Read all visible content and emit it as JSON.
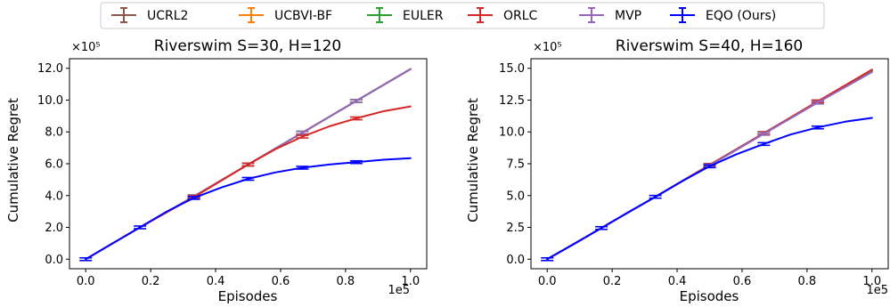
{
  "legend": {
    "placement": "top-center",
    "entries": [
      {
        "name": "UCRL2",
        "color": "#8c564b"
      },
      {
        "name": "UCBVI-BF",
        "color": "#ff7f0e"
      },
      {
        "name": "EULER",
        "color": "#2ca02c"
      },
      {
        "name": "ORLC",
        "color": "#d62728"
      },
      {
        "name": "MVP",
        "color": "#9467bd"
      },
      {
        "name": "EQO (Ours)",
        "color": "#0000ff"
      }
    ]
  },
  "chart_data": [
    {
      "type": "line",
      "title": "Riverswim S=30, H=120",
      "xlabel": "Episodes",
      "ylabel": "Cumulative Regret",
      "x_multiplier": "1e5",
      "y_multiplier": "×10⁵",
      "xlim": [
        -0.05,
        1.05
      ],
      "ylim": [
        -0.6,
        12.6
      ],
      "xticks": [
        "0.0",
        "0.2",
        "0.4",
        "0.6",
        "0.8",
        "1.0"
      ],
      "yticks": [
        "0.0",
        "2.0",
        "4.0",
        "6.0",
        "8.0",
        "10.0",
        "12.0"
      ],
      "grid": false,
      "series": [
        {
          "name": "UCRL2",
          "color": "#8c564b",
          "x": [
            0,
            0.167,
            0.333,
            0.5,
            0.667,
            0.833,
            1.0
          ],
          "y": [
            0,
            2.0,
            3.95,
            5.95,
            7.95,
            9.95,
            11.95
          ],
          "err_x": [
            0.333,
            0.5,
            0.667,
            0.833
          ]
        },
        {
          "name": "UCBVI-BF",
          "color": "#ff7f0e",
          "x": [
            0,
            0.167,
            0.333,
            0.5,
            0.667,
            0.833,
            1.0
          ],
          "y": [
            0,
            2.0,
            3.95,
            5.95,
            7.95,
            9.95,
            11.95
          ],
          "err_x": [
            0.333,
            0.5,
            0.667,
            0.833
          ]
        },
        {
          "name": "EULER",
          "color": "#2ca02c",
          "x": [
            0,
            0.167,
            0.333,
            0.5,
            0.667,
            0.833,
            1.0
          ],
          "y": [
            0,
            2.0,
            3.95,
            5.95,
            7.95,
            9.95,
            11.95
          ],
          "err_x": [
            0.333,
            0.5,
            0.667,
            0.833
          ]
        },
        {
          "name": "MVP",
          "color": "#9467bd",
          "x": [
            0,
            0.167,
            0.333,
            0.5,
            0.667,
            0.833,
            1.0
          ],
          "y": [
            0,
            2.0,
            3.95,
            5.95,
            7.95,
            9.95,
            11.95
          ],
          "err_x": [
            0.333,
            0.5,
            0.667,
            0.833
          ]
        },
        {
          "name": "ORLC",
          "color": "#d62728",
          "x": [
            0,
            0.167,
            0.333,
            0.5,
            0.583,
            0.667,
            0.75,
            0.833,
            0.917,
            1.0
          ],
          "y": [
            0,
            2.0,
            3.9,
            5.95,
            6.9,
            7.7,
            8.35,
            8.85,
            9.3,
            9.6
          ],
          "err_x": [
            0.333,
            0.5,
            0.667,
            0.833
          ]
        },
        {
          "name": "EQO (Ours)",
          "color": "#0000ff",
          "x": [
            0,
            0.083,
            0.167,
            0.25,
            0.333,
            0.417,
            0.5,
            0.583,
            0.667,
            0.75,
            0.833,
            0.917,
            1.0
          ],
          "y": [
            0,
            1.0,
            2.0,
            3.0,
            3.85,
            4.5,
            5.05,
            5.45,
            5.75,
            5.95,
            6.1,
            6.25,
            6.35
          ],
          "err_x": [
            0,
            0.167,
            0.333,
            0.5,
            0.667,
            0.833
          ]
        }
      ]
    },
    {
      "type": "line",
      "title": "Riverswim S=40, H=160",
      "xlabel": "Episodes",
      "ylabel": "Cumulative Regret",
      "x_multiplier": "1e5",
      "y_multiplier": "×10⁵",
      "xlim": [
        -0.05,
        1.05
      ],
      "ylim": [
        -0.75,
        15.75
      ],
      "xticks": [
        "0.0",
        "0.2",
        "0.4",
        "0.6",
        "0.8",
        "1.0"
      ],
      "yticks": [
        "0.0",
        "2.5",
        "5.0",
        "7.5",
        "10.0",
        "12.5",
        "15.0"
      ],
      "grid": false,
      "series": [
        {
          "name": "UCRL2",
          "color": "#8c564b",
          "x": [
            0,
            0.167,
            0.333,
            0.5,
            0.667,
            0.833,
            1.0
          ],
          "y": [
            0,
            2.45,
            4.9,
            7.4,
            9.9,
            12.35,
            14.8
          ],
          "err_x": [
            0.5,
            0.667,
            0.833
          ]
        },
        {
          "name": "UCBVI-BF",
          "color": "#ff7f0e",
          "x": [
            0,
            0.167,
            0.333,
            0.5,
            0.667,
            0.833,
            1.0
          ],
          "y": [
            0,
            2.45,
            4.9,
            7.4,
            9.9,
            12.35,
            14.8
          ],
          "err_x": [
            0.5,
            0.667,
            0.833
          ]
        },
        {
          "name": "EULER",
          "color": "#2ca02c",
          "x": [
            0,
            0.167,
            0.333,
            0.5,
            0.667,
            0.833,
            1.0
          ],
          "y": [
            0,
            2.45,
            4.9,
            7.4,
            9.9,
            12.35,
            14.8
          ],
          "err_x": [
            0.5,
            0.667,
            0.833
          ]
        },
        {
          "name": "ORLC",
          "color": "#d62728",
          "x": [
            0,
            0.167,
            0.333,
            0.5,
            0.667,
            0.833,
            1.0
          ],
          "y": [
            0,
            2.45,
            4.9,
            7.4,
            9.9,
            12.4,
            14.9
          ],
          "err_x": [
            0.5,
            0.667,
            0.833
          ]
        },
        {
          "name": "MVP",
          "color": "#9467bd",
          "x": [
            0,
            0.167,
            0.333,
            0.5,
            0.667,
            0.833,
            1.0
          ],
          "y": [
            0,
            2.45,
            4.9,
            7.35,
            9.85,
            12.3,
            14.7
          ],
          "err_x": [
            0.5,
            0.667,
            0.833
          ]
        },
        {
          "name": "EQO (Ours)",
          "color": "#0000ff",
          "x": [
            0,
            0.083,
            0.167,
            0.25,
            0.333,
            0.417,
            0.5,
            0.583,
            0.667,
            0.75,
            0.833,
            0.917,
            1.0
          ],
          "y": [
            0,
            1.2,
            2.45,
            3.7,
            4.9,
            6.15,
            7.3,
            8.25,
            9.05,
            9.8,
            10.35,
            10.8,
            11.1
          ],
          "err_x": [
            0,
            0.167,
            0.333,
            0.5,
            0.667,
            0.833
          ]
        }
      ]
    }
  ]
}
